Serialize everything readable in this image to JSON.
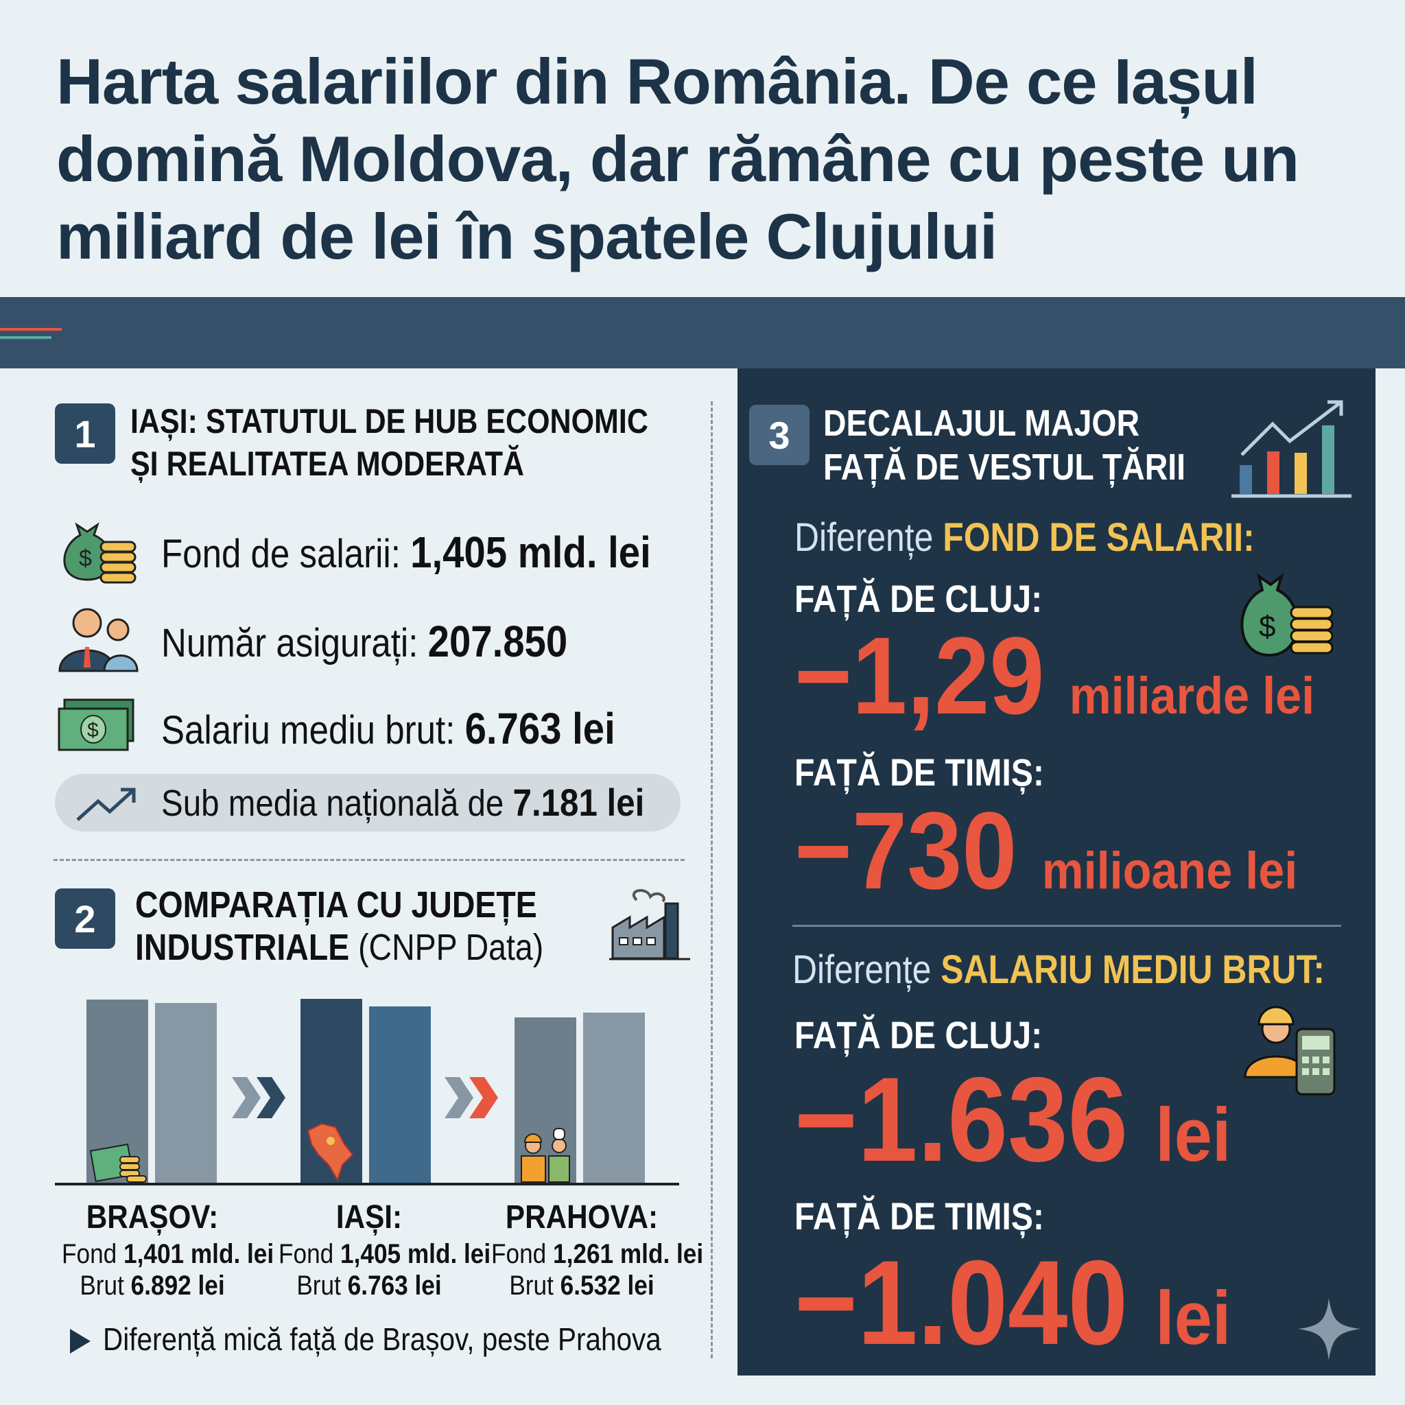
{
  "title": "Harta salariilor din România. De ce Iașul domină Moldova, dar rămâne cu peste un miliard de lei în spatele Clujului",
  "section1": {
    "number": "1",
    "heading_line1": "IAȘI: STATUTUL DE HUB ECONOMIC",
    "heading_line2": "ȘI REALITATEA MODERATĂ",
    "rows": [
      {
        "icon": "money-bag-icon",
        "label": "Fond de salarii: ",
        "value": "1,405 mld. lei"
      },
      {
        "icon": "people-icon",
        "label": "Număr asigurați: ",
        "value": "207.850"
      },
      {
        "icon": "banknote-icon",
        "label": "Salariu mediu brut: ",
        "value": "6.763 lei"
      }
    ],
    "note": {
      "icon": "trend-up-icon",
      "label": "Sub media națională de ",
      "value": "7.181 lei"
    }
  },
  "section2": {
    "number": "2",
    "heading_line1": "COMPARAȚIA CU JUDEȚE",
    "heading_bold2": "INDUSTRIALE",
    "heading_rest2": " (CNPP Data)",
    "counties": [
      {
        "name": "BRAȘOV:",
        "fond_label": "Fond ",
        "fond": "1,401 mld. lei",
        "brut_label": "Brut ",
        "brut": "6.892 lei"
      },
      {
        "name": "IAȘI:",
        "fond_label": "Fond ",
        "fond": "1,405 mld. lei",
        "brut_label": "Brut ",
        "brut": "6.763 lei"
      },
      {
        "name": "PRAHOVA:",
        "fond_label": "Fond ",
        "fond": "1,261 mld. lei",
        "brut_label": "Brut ",
        "brut": "6.532 lei"
      }
    ],
    "footnote": "Diferență mică față de Brașov, peste Prahova"
  },
  "chart_data": {
    "type": "bar",
    "categories": [
      "BRAȘOV",
      "IAȘI",
      "PRAHOVA"
    ],
    "series": [
      {
        "values": [
          1.401,
          1.405,
          1.261
        ]
      },
      {
        "values": [
          6892,
          6763,
          6532
        ]
      }
    ],
    "colors": {
      "brasov": [
        "#6e7f8c",
        "#8797a4"
      ],
      "iasi": [
        "#2e4a63",
        "#3f6a8c"
      ],
      "prahova": [
        "#6e7f8c",
        "#8797a4"
      ]
    }
  },
  "section3": {
    "number": "3",
    "heading_line1": "DECALAJUL MAJOR",
    "heading_line2": "FAȚĂ DE VESTUL ȚĂRII",
    "fond": {
      "prefix": "Diferențe ",
      "highlight": "FOND DE SALARII:",
      "cluj_label": "FAȚĂ DE CLUJ:",
      "cluj_value": "−1,29",
      "cluj_unit": "miliarde lei",
      "timis_label": "FAȚĂ DE TIMIȘ:",
      "timis_value": "−730",
      "timis_unit": "milioane lei"
    },
    "brut": {
      "prefix": "Diferențe ",
      "highlight": "SALARIU MEDIU BRUT:",
      "cluj_label": "FAȚĂ DE CLUJ:",
      "cluj_value": "−1.636",
      "cluj_unit": "lei",
      "timis_label": "FAȚĂ DE TIMIȘ:",
      "timis_value": "−1.040",
      "timis_unit": "lei"
    }
  },
  "colors": {
    "navy": "#1f3447",
    "red": "#e8563f",
    "yellow": "#f2c354",
    "bg": "#eaf1f4"
  }
}
